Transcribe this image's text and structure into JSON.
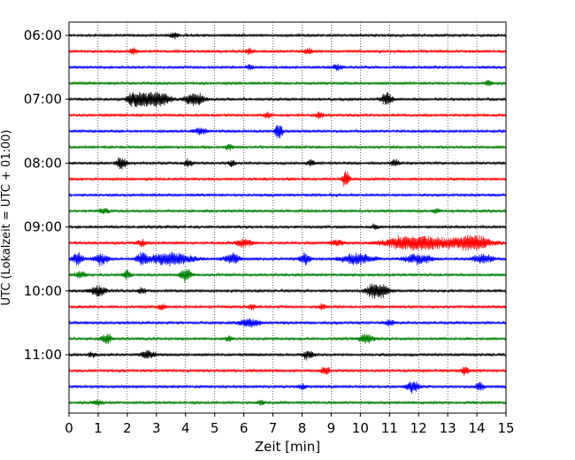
{
  "chart_data": {
    "type": "line",
    "xlabel": "Zeit  [min]",
    "ylabel": "UTC (Lokalzeit = UTC + 01:00)",
    "xlim": [
      0,
      15
    ],
    "x_ticks": [
      0,
      1,
      2,
      3,
      4,
      5,
      6,
      7,
      8,
      9,
      10,
      11,
      12,
      13,
      14,
      15
    ],
    "x_tick_labels": [
      "0",
      "1",
      "2",
      "3",
      "4",
      "5",
      "6",
      "7",
      "8",
      "9",
      "10",
      "11",
      "12",
      "13",
      "14",
      "15"
    ],
    "y_tick_labels": [
      "06:00",
      "07:00",
      "08:00",
      "09:00",
      "10:00",
      "11:00"
    ],
    "vertical_grid": true,
    "grid_style": "dotted",
    "trace_interval_minutes": 15,
    "trace_colors": [
      "#000000",
      "#ff0000",
      "#0000ff",
      "#008000"
    ],
    "traces": [
      {
        "time": "06:00",
        "color": "#000000",
        "events": [
          {
            "t": 3.6,
            "amp": 0.9,
            "dur": 0.3
          }
        ]
      },
      {
        "time": "06:15",
        "color": "#ff0000",
        "events": [
          {
            "t": 2.2,
            "amp": 1.0,
            "dur": 0.3
          },
          {
            "t": 6.2,
            "amp": 0.8,
            "dur": 0.3
          },
          {
            "t": 8.2,
            "amp": 0.9,
            "dur": 0.4
          }
        ]
      },
      {
        "time": "06:30",
        "color": "#0000ff",
        "events": [
          {
            "t": 6.2,
            "amp": 0.7,
            "dur": 0.3
          },
          {
            "t": 9.2,
            "amp": 0.8,
            "dur": 0.4
          }
        ]
      },
      {
        "time": "06:45",
        "color": "#008000",
        "events": [
          {
            "t": 14.4,
            "amp": 0.9,
            "dur": 0.3
          }
        ]
      },
      {
        "time": "07:00",
        "color": "#000000",
        "events": [
          {
            "t": 2.3,
            "amp": 5.0,
            "dur": 0.5
          },
          {
            "t": 3.0,
            "amp": 3.2,
            "dur": 0.9
          },
          {
            "t": 4.3,
            "amp": 2.2,
            "dur": 0.7
          },
          {
            "t": 10.9,
            "amp": 2.2,
            "dur": 0.4
          }
        ]
      },
      {
        "time": "07:15",
        "color": "#ff0000",
        "events": [
          {
            "t": 6.8,
            "amp": 1.0,
            "dur": 0.3
          },
          {
            "t": 8.6,
            "amp": 0.9,
            "dur": 0.3
          }
        ]
      },
      {
        "time": "07:30",
        "color": "#0000ff",
        "events": [
          {
            "t": 4.5,
            "amp": 1.0,
            "dur": 0.5
          },
          {
            "t": 7.2,
            "amp": 3.5,
            "dur": 0.25
          }
        ]
      },
      {
        "time": "07:45",
        "color": "#008000",
        "events": [
          {
            "t": 5.5,
            "amp": 0.9,
            "dur": 0.3
          }
        ]
      },
      {
        "time": "08:00",
        "color": "#000000",
        "events": [
          {
            "t": 1.8,
            "amp": 2.2,
            "dur": 0.35
          },
          {
            "t": 4.1,
            "amp": 1.2,
            "dur": 0.3
          },
          {
            "t": 5.6,
            "amp": 1.0,
            "dur": 0.3
          },
          {
            "t": 8.3,
            "amp": 1.0,
            "dur": 0.3
          },
          {
            "t": 11.2,
            "amp": 1.2,
            "dur": 0.3
          }
        ]
      },
      {
        "time": "08:15",
        "color": "#ff0000",
        "events": [
          {
            "t": 9.5,
            "amp": 3.5,
            "dur": 0.25
          }
        ]
      },
      {
        "time": "08:30",
        "color": "#0000ff",
        "events": []
      },
      {
        "time": "08:45",
        "color": "#008000",
        "events": [
          {
            "t": 1.2,
            "amp": 0.8,
            "dur": 0.4
          },
          {
            "t": 12.6,
            "amp": 0.8,
            "dur": 0.3
          }
        ]
      },
      {
        "time": "09:00",
        "color": "#000000",
        "events": [
          {
            "t": 10.5,
            "amp": 0.7,
            "dur": 0.3
          }
        ]
      },
      {
        "time": "09:15",
        "color": "#ff0000",
        "events": [
          {
            "t": 2.5,
            "amp": 1.0,
            "dur": 0.4
          },
          {
            "t": 6.0,
            "amp": 1.2,
            "dur": 0.6
          },
          {
            "t": 9.2,
            "amp": 1.0,
            "dur": 0.5
          },
          {
            "t": 11.9,
            "amp": 2.6,
            "dur": 2.2
          },
          {
            "t": 13.8,
            "amp": 2.4,
            "dur": 1.5
          }
        ]
      },
      {
        "time": "09:30",
        "color": "#0000ff",
        "events": [
          {
            "t": 0.3,
            "amp": 2.0,
            "dur": 0.4
          },
          {
            "t": 1.1,
            "amp": 1.8,
            "dur": 0.5
          },
          {
            "t": 2.5,
            "amp": 1.8,
            "dur": 0.4
          },
          {
            "t": 3.5,
            "amp": 2.2,
            "dur": 1.6
          },
          {
            "t": 5.6,
            "amp": 1.6,
            "dur": 0.6
          },
          {
            "t": 8.1,
            "amp": 1.8,
            "dur": 0.4
          },
          {
            "t": 9.9,
            "amp": 1.7,
            "dur": 1.2
          },
          {
            "t": 12.0,
            "amp": 1.6,
            "dur": 1.0
          },
          {
            "t": 14.2,
            "amp": 1.4,
            "dur": 0.8
          }
        ]
      },
      {
        "time": "09:45",
        "color": "#008000",
        "events": [
          {
            "t": 0.4,
            "amp": 1.0,
            "dur": 0.4
          },
          {
            "t": 2.0,
            "amp": 1.4,
            "dur": 0.3
          },
          {
            "t": 4.0,
            "amp": 2.2,
            "dur": 0.4
          }
        ]
      },
      {
        "time": "10:00",
        "color": "#000000",
        "events": [
          {
            "t": 1.0,
            "amp": 1.6,
            "dur": 0.6
          },
          {
            "t": 2.5,
            "amp": 1.0,
            "dur": 0.3
          },
          {
            "t": 10.6,
            "amp": 2.8,
            "dur": 0.8
          }
        ]
      },
      {
        "time": "10:15",
        "color": "#ff0000",
        "events": [
          {
            "t": 3.2,
            "amp": 0.9,
            "dur": 0.3
          },
          {
            "t": 6.3,
            "amp": 0.8,
            "dur": 0.3
          },
          {
            "t": 8.7,
            "amp": 0.8,
            "dur": 0.3
          }
        ]
      },
      {
        "time": "10:30",
        "color": "#0000ff",
        "events": [
          {
            "t": 6.2,
            "amp": 1.4,
            "dur": 0.8
          },
          {
            "t": 11.0,
            "amp": 0.9,
            "dur": 0.4
          }
        ]
      },
      {
        "time": "10:45",
        "color": "#008000",
        "events": [
          {
            "t": 1.3,
            "amp": 1.4,
            "dur": 0.4
          },
          {
            "t": 5.5,
            "amp": 0.8,
            "dur": 0.3
          },
          {
            "t": 10.2,
            "amp": 1.3,
            "dur": 0.6
          }
        ]
      },
      {
        "time": "11:00",
        "color": "#000000",
        "events": [
          {
            "t": 0.8,
            "amp": 0.8,
            "dur": 0.3
          },
          {
            "t": 2.7,
            "amp": 1.4,
            "dur": 0.5
          },
          {
            "t": 8.2,
            "amp": 1.4,
            "dur": 0.4
          }
        ]
      },
      {
        "time": "11:15",
        "color": "#ff0000",
        "events": [
          {
            "t": 8.8,
            "amp": 1.3,
            "dur": 0.3
          },
          {
            "t": 13.6,
            "amp": 1.2,
            "dur": 0.3
          }
        ]
      },
      {
        "time": "11:30",
        "color": "#0000ff",
        "events": [
          {
            "t": 8.0,
            "amp": 0.9,
            "dur": 0.3
          },
          {
            "t": 11.8,
            "amp": 1.8,
            "dur": 0.5
          },
          {
            "t": 14.1,
            "amp": 1.5,
            "dur": 0.3
          }
        ]
      },
      {
        "time": "11:45",
        "color": "#008000",
        "events": [
          {
            "t": 1.0,
            "amp": 0.8,
            "dur": 0.4
          },
          {
            "t": 6.6,
            "amp": 0.8,
            "dur": 0.3
          }
        ]
      }
    ]
  }
}
